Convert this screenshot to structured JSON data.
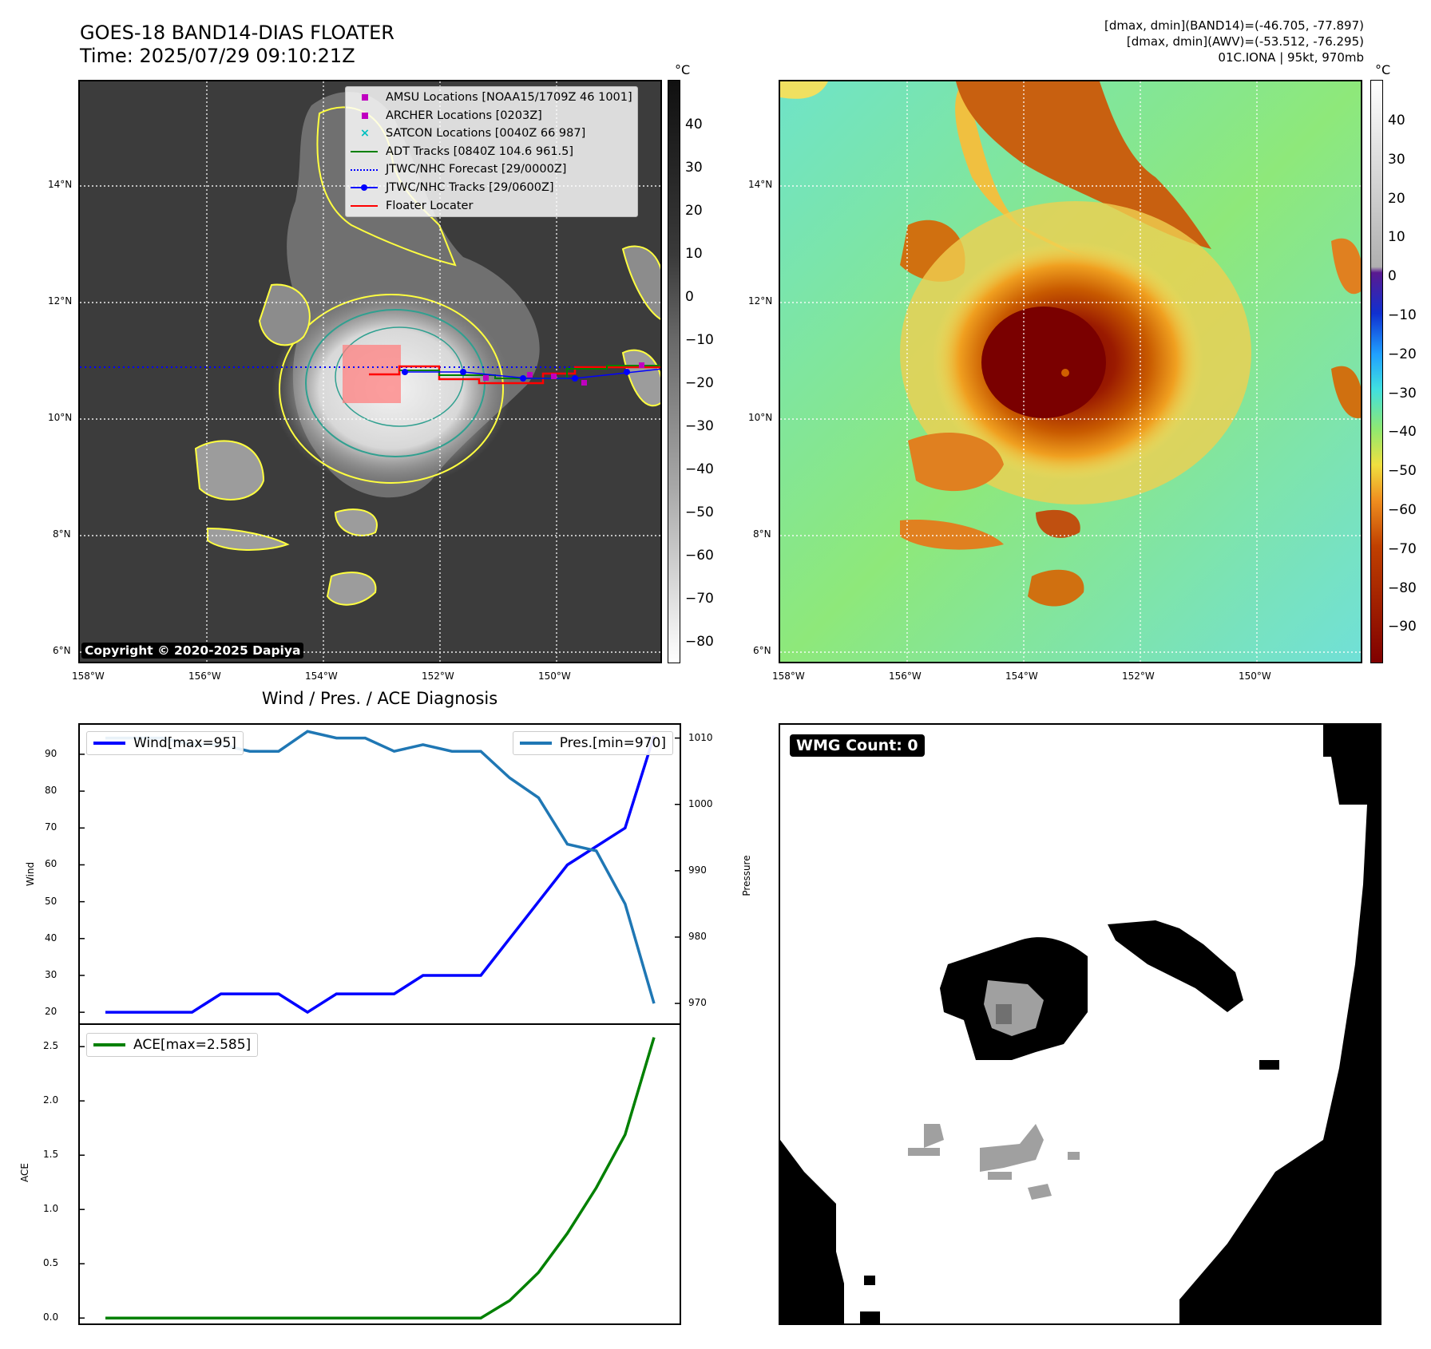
{
  "header": {
    "title": "GOES-18 BAND14-DIAS FLOATER",
    "time": "Time: 2025/07/29 09:10:21Z"
  },
  "meta": {
    "line1": "[dmax, dmin](BAND14)=(-46.705, -77.897)",
    "line2": "[dmax, dmin](AWV)=(-53.512, -76.295)",
    "line3": "01C.IONA | 95kt, 970mb"
  },
  "maps": {
    "lat_ticks": [
      "14°N",
      "12°N",
      "10°N",
      "8°N",
      "6°N"
    ],
    "lon_ticks": [
      "158°W",
      "156°W",
      "154°W",
      "152°W",
      "150°W"
    ],
    "copyright": "Copyright © 2020-2025 Dapiya"
  },
  "colorbar_left": {
    "unit": "°C",
    "ticks": [
      "40",
      "30",
      "20",
      "10",
      "0",
      "−10",
      "−20",
      "−30",
      "−40",
      "−50",
      "−60",
      "−70",
      "−80"
    ]
  },
  "colorbar_right": {
    "unit": "°C",
    "ticks": [
      "40",
      "30",
      "20",
      "10",
      "0",
      "−10",
      "−20",
      "−30",
      "−40",
      "−50",
      "−60",
      "−70",
      "−80",
      "−90"
    ]
  },
  "map_legend": {
    "items": [
      {
        "label": "AMSU Locations [NOAA15/1709Z 46 1001]",
        "symbol": "square",
        "color": "#c000c0"
      },
      {
        "label": "ARCHER Locations [0203Z]",
        "symbol": "square",
        "color": "#c000c0"
      },
      {
        "label": "SATCON Locations [0040Z 66 987]",
        "symbol": "x",
        "color": "#00c0c0"
      },
      {
        "label": "ADT Tracks [0840Z 104.6 961.5]",
        "symbol": "line",
        "color": "#008000"
      },
      {
        "label": "JTWC/NHC Forecast [29/0000Z]",
        "symbol": "dotted",
        "color": "#0000ff"
      },
      {
        "label": "JTWC/NHC Tracks [29/0600Z]",
        "symbol": "line-dot",
        "color": "#0000ff"
      },
      {
        "label": "Floater Locater",
        "symbol": "line",
        "color": "#ff0000"
      }
    ]
  },
  "diagnosis": {
    "title": "Wind / Pres. / ACE Diagnosis",
    "wind_label": "Wind",
    "pressure_label": "Pressure",
    "ace_label": "ACE",
    "wind_legend": "Wind[max=95]",
    "pres_legend": "Pres.[min=970]",
    "ace_legend": "ACE[max=2.585]"
  },
  "wmg": {
    "label": "WMG Count: 0"
  },
  "chart_data": [
    {
      "type": "line",
      "title": "Wind / Pres. / ACE Diagnosis",
      "ylabel": "Wind",
      "y2label": "Pressure",
      "ylim": [
        17,
        98
      ],
      "y2lim": [
        967,
        1012
      ],
      "yticks": [
        20,
        30,
        40,
        50,
        60,
        70,
        80,
        90
      ],
      "y2ticks": [
        970,
        980,
        990,
        1000,
        1010
      ],
      "series": [
        {
          "name": "Wind[max=95]",
          "color": "#0000ff",
          "axis": "left",
          "values": [
            20,
            20,
            20,
            20,
            25,
            25,
            25,
            20,
            25,
            25,
            25,
            30,
            30,
            30,
            40,
            50,
            60,
            65,
            70,
            95
          ]
        },
        {
          "name": "Pres.[min=970]",
          "color": "#1f77b4",
          "axis": "right",
          "values": [
            1010,
            1010,
            1010,
            1009,
            1009,
            1008,
            1008,
            1011,
            1010,
            1010,
            1008,
            1009,
            1008,
            1008,
            1004,
            1001,
            994,
            993,
            985,
            970
          ]
        }
      ]
    },
    {
      "type": "line",
      "ylabel": "ACE",
      "ylim": [
        -0.05,
        2.7
      ],
      "yticks": [
        0.0,
        0.5,
        1.0,
        1.5,
        2.0,
        2.5
      ],
      "series": [
        {
          "name": "ACE[max=2.585]",
          "color": "#008000",
          "values": [
            0,
            0,
            0,
            0,
            0,
            0,
            0,
            0,
            0,
            0,
            0,
            0,
            0,
            0,
            0.16,
            0.42,
            0.78,
            1.2,
            1.69,
            2.585
          ]
        }
      ]
    }
  ]
}
